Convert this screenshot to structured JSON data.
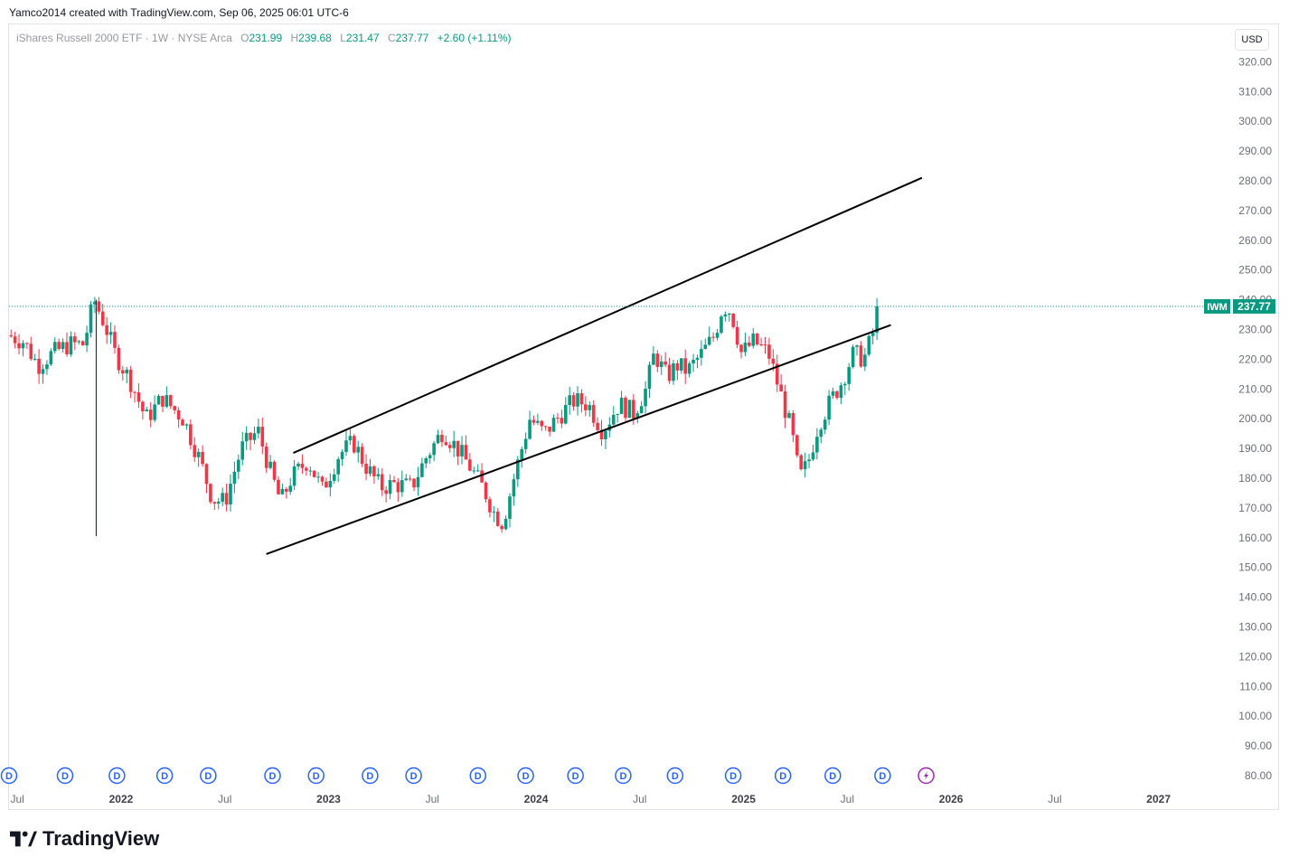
{
  "header": {
    "note": "Yamco2014 created with TradingView.com, Sep 06, 2025 06:01 UTC-6"
  },
  "legend": {
    "symbol": "iShares Russell 2000 ETF · 1W · NYSE Arca",
    "o_label": "O",
    "o": "231.99",
    "h_label": "H",
    "h": "239.68",
    "l_label": "L",
    "l": "231.47",
    "c_label": "C",
    "c": "237.77",
    "change": "+2.60 (+1.11%)"
  },
  "currency": "USD",
  "price_label": {
    "ticker": "IWM",
    "value": "237.77"
  },
  "footer": {
    "brand": "TradingView"
  },
  "colors": {
    "up": "#089981",
    "down": "#f23645",
    "line": "#000000",
    "dividend": "#2962ff",
    "split": "#9c27b0"
  },
  "chart_data": {
    "type": "candlestick",
    "interval": "1W",
    "last_close": 237.77,
    "ylim": [
      78,
      325
    ],
    "y_ticks": [
      "320.00",
      "310.00",
      "300.00",
      "290.00",
      "280.00",
      "270.00",
      "260.00",
      "250.00",
      "240.00",
      "230.00",
      "220.00",
      "210.00",
      "200.00",
      "190.00",
      "180.00",
      "170.00",
      "160.00",
      "150.00",
      "140.00",
      "130.00",
      "120.00",
      "110.00",
      "100.00",
      "90.00",
      "80.00"
    ],
    "x_ticks": [
      {
        "label": "Jul",
        "t": 2021.5,
        "year": false
      },
      {
        "label": "2022",
        "t": 2022.0,
        "year": true
      },
      {
        "label": "Jul",
        "t": 2022.5,
        "year": false
      },
      {
        "label": "2023",
        "t": 2023.0,
        "year": true
      },
      {
        "label": "Jul",
        "t": 2023.5,
        "year": false
      },
      {
        "label": "2024",
        "t": 2024.0,
        "year": true
      },
      {
        "label": "Jul",
        "t": 2024.5,
        "year": false
      },
      {
        "label": "2025",
        "t": 2025.0,
        "year": true
      },
      {
        "label": "Jul",
        "t": 2025.5,
        "year": false
      },
      {
        "label": "2026",
        "t": 2026.0,
        "year": true
      },
      {
        "label": "Jul",
        "t": 2026.5,
        "year": false
      },
      {
        "label": "2027",
        "t": 2027.0,
        "year": true
      }
    ],
    "x_range": [
      2021.46,
      2027.35
    ],
    "price_path": [
      [
        2021.46,
        228
      ],
      [
        2021.53,
        226
      ],
      [
        2021.6,
        218
      ],
      [
        2021.67,
        222
      ],
      [
        2021.75,
        225
      ],
      [
        2021.82,
        225
      ],
      [
        2021.87,
        240
      ],
      [
        2021.92,
        232
      ],
      [
        2021.97,
        222
      ],
      [
        2022.05,
        212
      ],
      [
        2022.12,
        200
      ],
      [
        2022.2,
        207
      ],
      [
        2022.3,
        200
      ],
      [
        2022.38,
        186
      ],
      [
        2022.44,
        173
      ],
      [
        2022.5,
        172
      ],
      [
        2022.58,
        190
      ],
      [
        2022.66,
        196
      ],
      [
        2022.72,
        182
      ],
      [
        2022.77,
        172
      ],
      [
        2022.82,
        180
      ],
      [
        2022.9,
        186
      ],
      [
        2022.97,
        176
      ],
      [
        2023.05,
        188
      ],
      [
        2023.12,
        192
      ],
      [
        2023.18,
        184
      ],
      [
        2023.25,
        177
      ],
      [
        2023.32,
        178
      ],
      [
        2023.4,
        177
      ],
      [
        2023.47,
        187
      ],
      [
        2023.55,
        196
      ],
      [
        2023.62,
        190
      ],
      [
        2023.68,
        184
      ],
      [
        2023.75,
        176
      ],
      [
        2023.8,
        168
      ],
      [
        2023.84,
        165
      ],
      [
        2023.9,
        182
      ],
      [
        2023.97,
        200
      ],
      [
        2024.04,
        195
      ],
      [
        2024.1,
        200
      ],
      [
        2024.18,
        206
      ],
      [
        2024.25,
        205
      ],
      [
        2024.32,
        196
      ],
      [
        2024.4,
        205
      ],
      [
        2024.47,
        202
      ],
      [
        2024.53,
        210
      ],
      [
        2024.57,
        222
      ],
      [
        2024.63,
        214
      ],
      [
        2024.68,
        218
      ],
      [
        2024.73,
        216
      ],
      [
        2024.8,
        222
      ],
      [
        2024.86,
        228
      ],
      [
        2024.9,
        238
      ],
      [
        2024.94,
        236
      ],
      [
        2024.99,
        222
      ],
      [
        2025.05,
        226
      ],
      [
        2025.12,
        222
      ],
      [
        2025.18,
        208
      ],
      [
        2025.23,
        196
      ],
      [
        2025.27,
        180
      ],
      [
        2025.31,
        185
      ],
      [
        2025.36,
        198
      ],
      [
        2025.42,
        206
      ],
      [
        2025.47,
        212
      ],
      [
        2025.53,
        222
      ],
      [
        2025.58,
        220
      ],
      [
        2025.62,
        228
      ],
      [
        2025.66,
        237.77
      ]
    ],
    "trendlines": [
      {
        "name": "upper",
        "from": [
          2022.83,
          188.5
        ],
        "to": [
          2025.86,
          281
        ]
      },
      {
        "name": "lower",
        "from": [
          2022.7,
          154.5
        ],
        "to": [
          2025.71,
          231.5
        ]
      }
    ],
    "dividend_marks_t": [
      2021.46,
      2021.73,
      2021.98,
      2022.21,
      2022.42,
      2022.73,
      2022.94,
      2023.2,
      2023.41,
      2023.72,
      2023.95,
      2024.19,
      2024.42,
      2024.67,
      2024.95,
      2025.19,
      2025.43,
      2025.67
    ],
    "split_mark_t": 2025.88
  }
}
